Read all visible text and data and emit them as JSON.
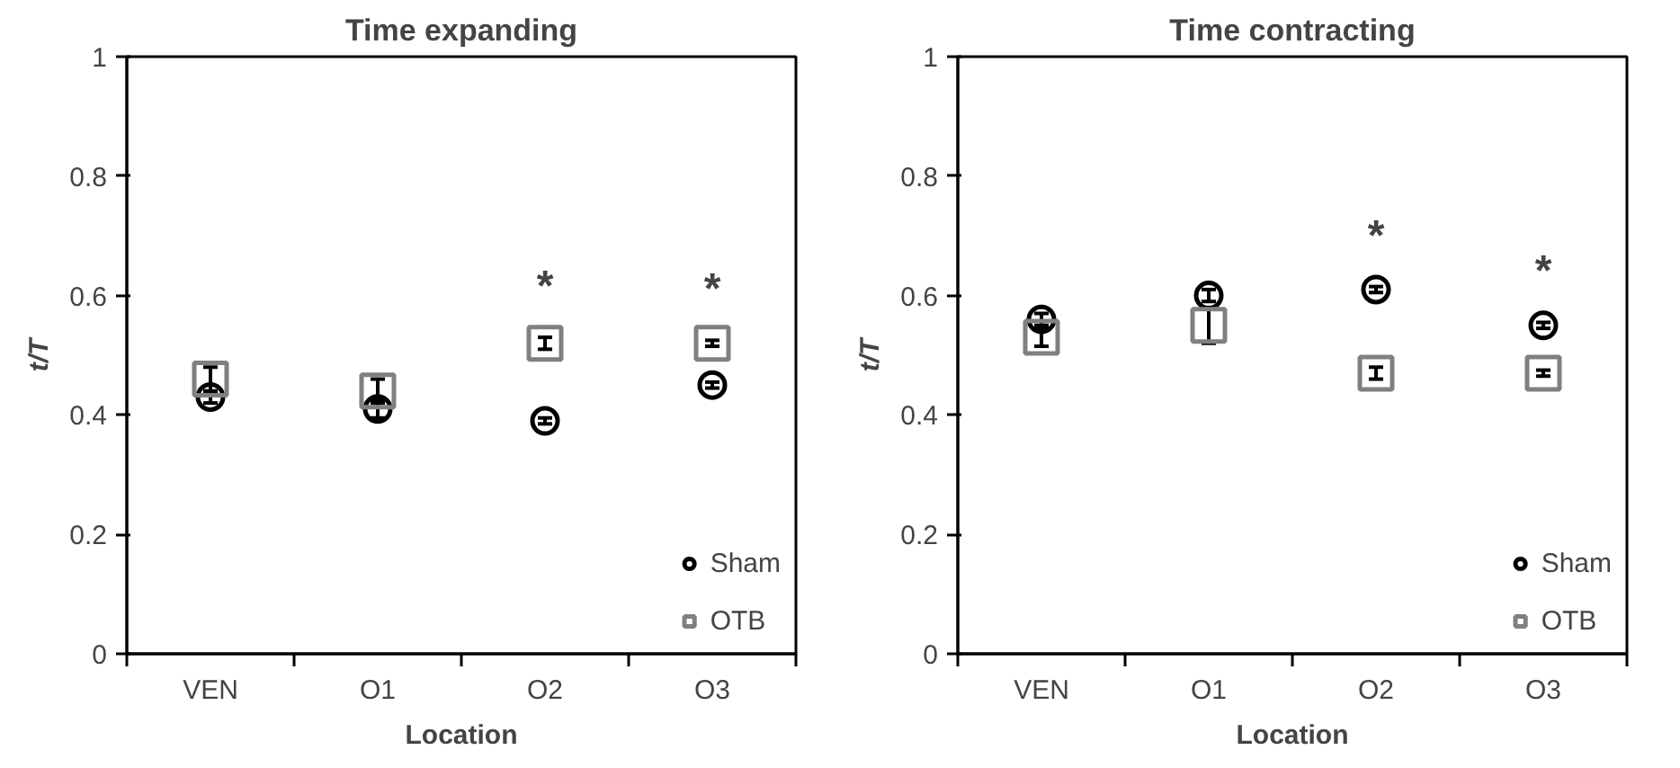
{
  "chart_data": [
    {
      "type": "scatter",
      "title": "Time expanding",
      "xlabel": "Location",
      "ylabel": "t/T",
      "categories": [
        "VEN",
        "O1",
        "O2",
        "O3"
      ],
      "ylim": [
        0,
        1
      ],
      "yticks": [
        0,
        0.2,
        0.4,
        0.6,
        0.8,
        1
      ],
      "grid": false,
      "legend": "bottom right",
      "series": [
        {
          "name": "Sham",
          "color": "#000000",
          "marker": "circle",
          "values": [
            0.43,
            0.41,
            0.39,
            0.45
          ],
          "errors": [
            0.01,
            0.015,
            0.005,
            0.005
          ]
        },
        {
          "name": "OTB",
          "color": "#808080",
          "marker": "square",
          "values": [
            0.46,
            0.44,
            0.52,
            0.52
          ],
          "errors": [
            0.02,
            0.02,
            0.01,
            0.005
          ]
        }
      ],
      "annotations": [
        "*",
        "*"
      ]
    },
    {
      "type": "scatter",
      "title": "Time contracting",
      "xlabel": "Location",
      "ylabel": "t/T",
      "categories": [
        "VEN",
        "O1",
        "O2",
        "O3"
      ],
      "ylim": [
        0,
        1
      ],
      "yticks": [
        0,
        0.2,
        0.4,
        0.6,
        0.8,
        1
      ],
      "grid": false,
      "legend": "bottom right",
      "series": [
        {
          "name": "Sham",
          "color": "#000000",
          "marker": "circle",
          "values": [
            0.56,
            0.6,
            0.61,
            0.55
          ],
          "errors": [
            0.01,
            0.01,
            0.005,
            0.005
          ]
        },
        {
          "name": "OTB",
          "color": "#808080",
          "marker": "square",
          "values": [
            0.53,
            0.55,
            0.47,
            0.47
          ],
          "errors": [
            0.015,
            0.03,
            0.01,
            0.005
          ]
        }
      ],
      "annotations": [
        "*",
        "*"
      ]
    }
  ]
}
